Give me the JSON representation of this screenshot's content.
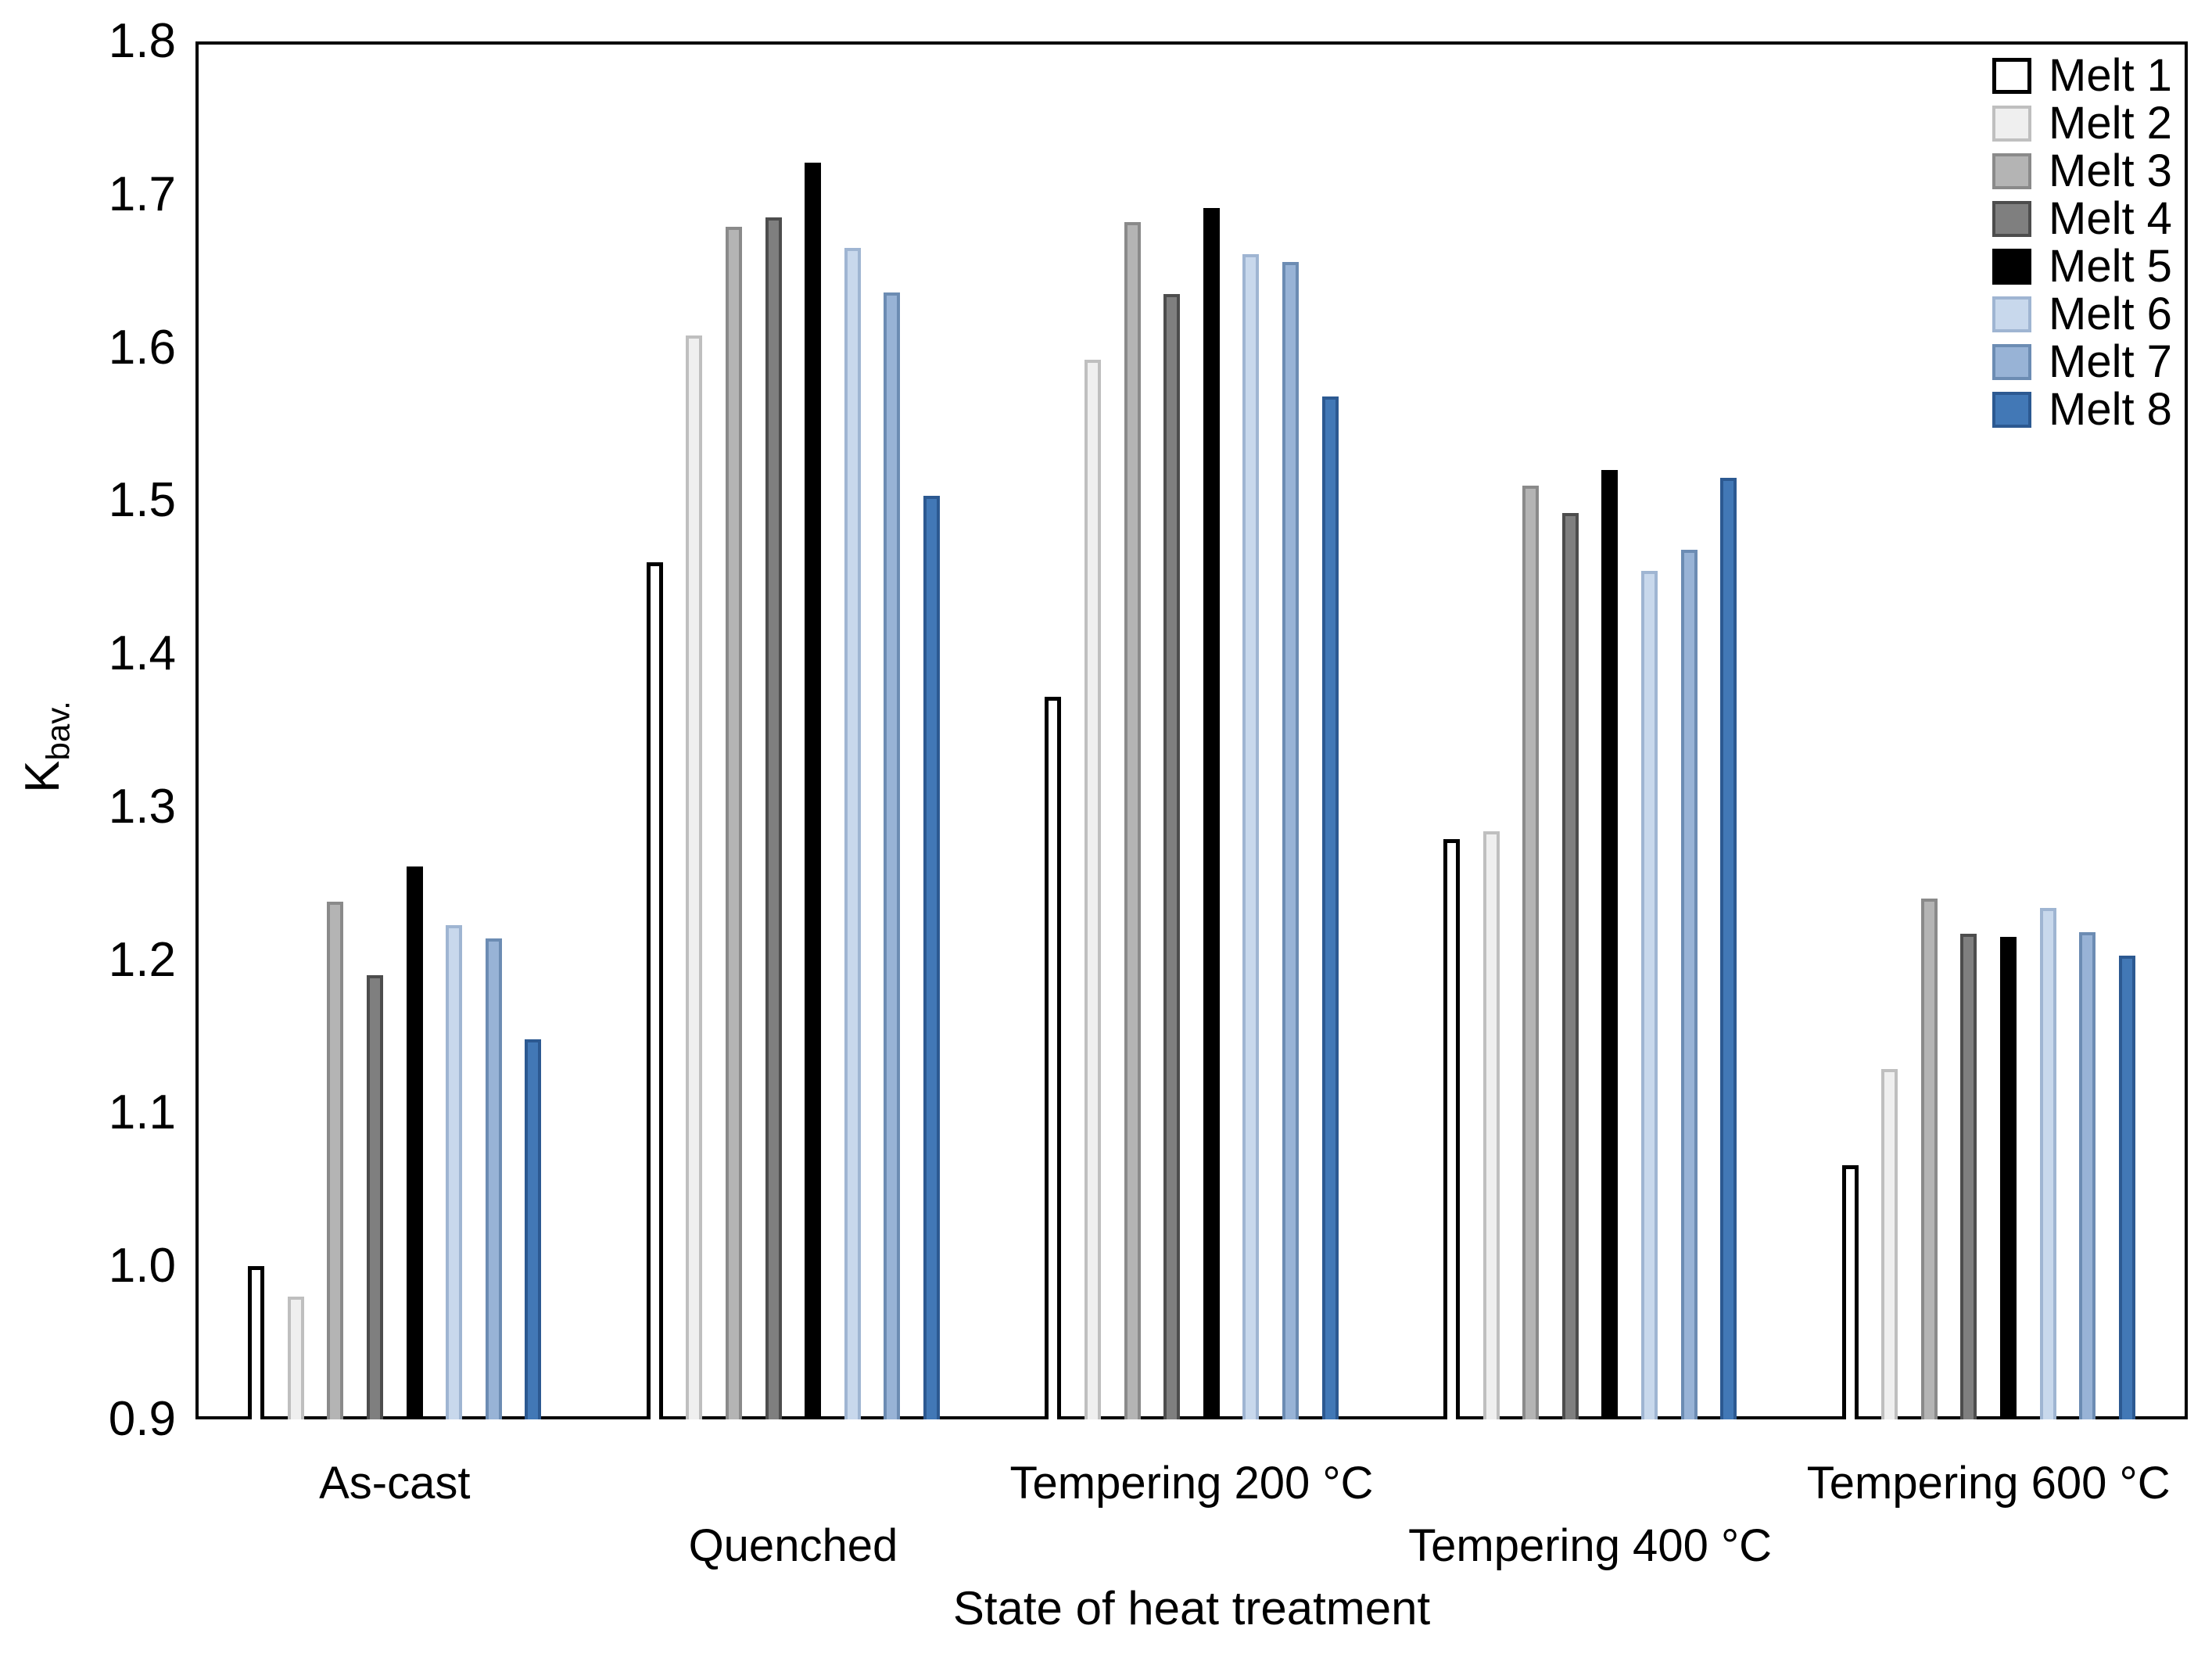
{
  "chart_data": {
    "type": "bar",
    "title": "",
    "xlabel": "State of heat treatment",
    "ylabel": "K",
    "ylabel_subscript": "bav.",
    "ylim": [
      0.9,
      1.8
    ],
    "ytick_step": 0.1,
    "grid": false,
    "legend_position": "top-right",
    "categories": [
      "As-cast",
      "Quenched",
      "Tempering 200 °C",
      "Tempering 400 °C",
      "Tempering 600 °C"
    ],
    "series": [
      {
        "name": "Melt 1",
        "fill": "#FFFFFF",
        "stroke": "#000000",
        "values": [
          1.0,
          1.46,
          1.372,
          1.279,
          1.066
        ]
      },
      {
        "name": "Melt 2",
        "fill": "#EFEFEF",
        "stroke": "#BFBFBF",
        "values": [
          0.98,
          1.608,
          1.592,
          1.284,
          1.129
        ]
      },
      {
        "name": "Melt 3",
        "fill": "#B4B4B4",
        "stroke": "#8A8A8A",
        "values": [
          1.238,
          1.679,
          1.682,
          1.51,
          1.24
        ]
      },
      {
        "name": "Melt 4",
        "fill": "#7F7F7F",
        "stroke": "#4D4D4D",
        "values": [
          1.19,
          1.685,
          1.635,
          1.492,
          1.217
        ]
      },
      {
        "name": "Melt 5",
        "fill": "#000000",
        "stroke": "#000000",
        "values": [
          1.261,
          1.721,
          1.691,
          1.52,
          1.215
        ]
      },
      {
        "name": "Melt 6",
        "fill": "#C8D8EC",
        "stroke": "#9FB5D2",
        "values": [
          1.223,
          1.665,
          1.661,
          1.454,
          1.234
        ]
      },
      {
        "name": "Melt 7",
        "fill": "#98B3D6",
        "stroke": "#6C8CB3",
        "values": [
          1.214,
          1.636,
          1.656,
          1.468,
          1.218
        ]
      },
      {
        "name": "Melt 8",
        "fill": "#4278B6",
        "stroke": "#2C5991",
        "values": [
          1.148,
          1.503,
          1.568,
          1.515,
          1.203
        ]
      }
    ]
  }
}
